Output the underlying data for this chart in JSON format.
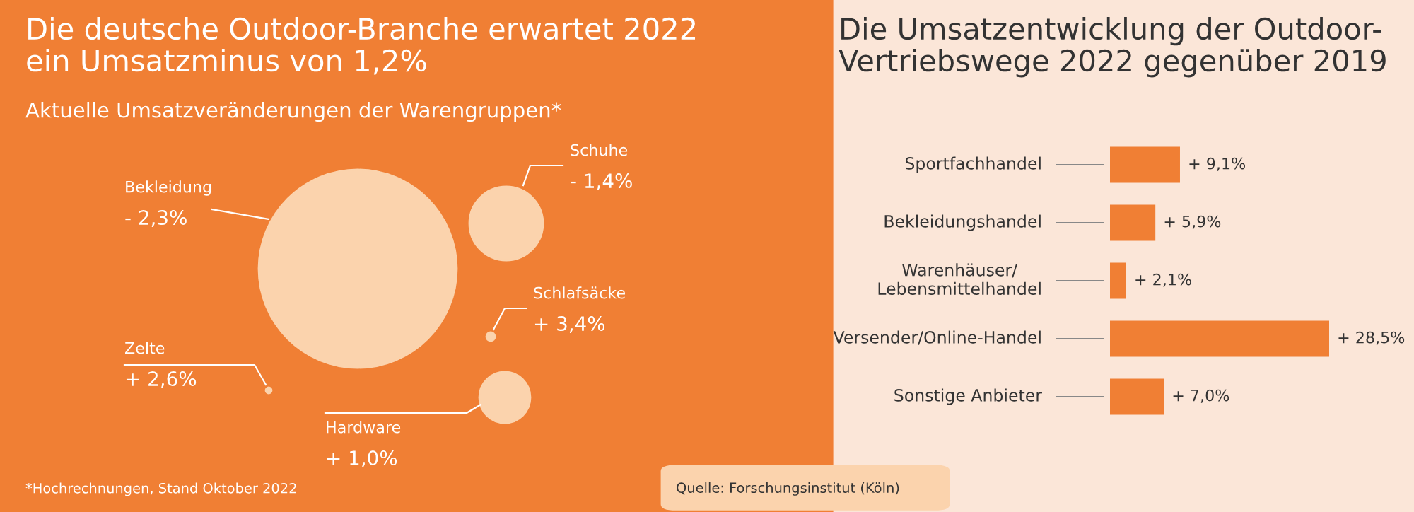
{
  "chart_data": [
    {
      "type": "other",
      "title": "Die deutsche Outdoor-Branche erwartet 2022\nein Umsatzminus von 1,2%",
      "subtitle": "Aktuelle Umsatzveränderungen der Warengruppen*",
      "categories": [
        "Bekleidung",
        "Schuhe",
        "Schlafsäcke",
        "Zelte",
        "Hardware"
      ],
      "value_labels": [
        "- 2,3%",
        "- 1,4%",
        "+ 3,4%",
        "+ 2,6%",
        "+ 1,0%"
      ],
      "color": "#fbd3ad",
      "annotations": [
        "*Hochrechnungen, Stand Oktober 2022"
      ]
    },
    {
      "type": "bar",
      "orientation": "horizontal",
      "title": "Die Umsatzentwicklung der Outdoor-\nVertriebswege 2022 gegenüber 2019",
      "categories": [
        "Sportfachhandel",
        "Bekleidungshandel",
        "Warenhäuser/\nLebensmittelhandel",
        "Versender/Online-Handel",
        "Sonstige Anbieter"
      ],
      "values": [
        9.1,
        5.9,
        2.1,
        28.5,
        7.0
      ],
      "value_labels": [
        "+ 9,1%",
        "+ 5,9%",
        "+ 2,1%",
        "+ 28,5%",
        "+ 7,0%"
      ],
      "color": "#f07f34",
      "annotations": [
        "Quelle: Forschungsinstitut (Köln)"
      ]
    }
  ]
}
